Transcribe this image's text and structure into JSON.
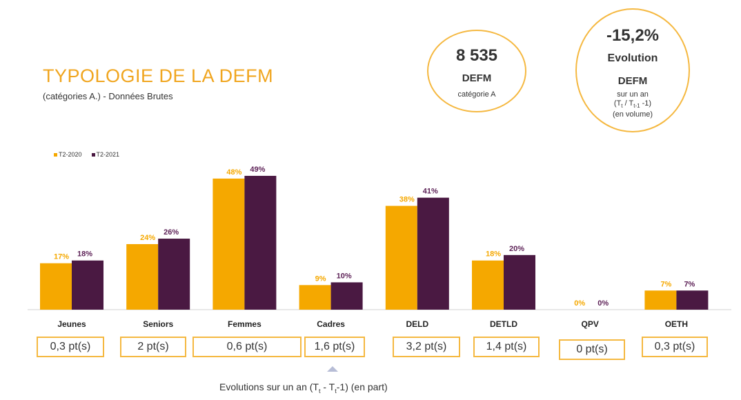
{
  "header": {
    "title": "TYPOLOGIE DE LA DEFM",
    "subtitle": "(catégories A.) - Données Brutes"
  },
  "kpi_defm": {
    "value": "8 535",
    "label": "DEFM",
    "sub": "catégorie A"
  },
  "kpi_evolution": {
    "value": "-15,2%",
    "label1": "Evolution",
    "label2": "DEFM",
    "sub1": "sur un an",
    "sub2_a": "(T",
    "sub2_t": "t",
    "sub2_b": " / T",
    "sub2_t1": "t-1",
    "sub2_c": " -1)",
    "sub3": "(en volume)"
  },
  "colors": {
    "t2_2020": "#f5a800",
    "t2_2021": "#4a1942",
    "label_2020": "#f5a800",
    "label_2021": "#5b1f55",
    "box_border": "#f5b840",
    "axis": "#d0d0d0"
  },
  "chart_data": {
    "type": "bar",
    "categories": [
      "Jeunes",
      "Seniors",
      "Femmes",
      "Cadres",
      "DELD",
      "DETLD",
      "QPV",
      "OETH"
    ],
    "series": [
      {
        "name": "T2-2020",
        "values": [
          17,
          24,
          48,
          9,
          38,
          18,
          0,
          7
        ],
        "labels": [
          "17%",
          "24%",
          "48%",
          "9%",
          "38%",
          "18%",
          "0%",
          "7%"
        ]
      },
      {
        "name": "T2-2021",
        "values": [
          18,
          26,
          49,
          10,
          41,
          20,
          0,
          7
        ],
        "labels": [
          "18%",
          "26%",
          "49%",
          "10%",
          "41%",
          "20%",
          "0%",
          "7%"
        ]
      }
    ],
    "ylim": [
      0,
      50
    ],
    "legend": "top-left",
    "grid": false
  },
  "evolutions": [
    "0,3 pt(s)",
    "2 pt(s)",
    "0,6 pt(s)",
    "1,6 pt(s)",
    "3,2 pt(s)",
    "1,4 pt(s)",
    "0 pt(s)",
    "0,3 pt(s)"
  ],
  "footer": {
    "a": "Evolutions sur un an (T",
    "t": "t",
    "b": " - T",
    "t2": "t",
    "c": "-1) (en part)"
  }
}
